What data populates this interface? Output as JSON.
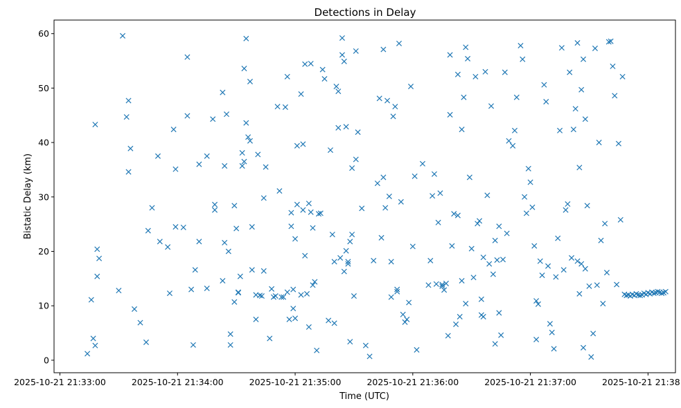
{
  "chart_data": {
    "type": "scatter",
    "title": "Detections in Delay",
    "xlabel": "Time (UTC)",
    "ylabel": "Bistatic Delay (km)",
    "marker": "x",
    "color": "#1f77b4",
    "grid": false,
    "xlim": [
      "2025-10-21 21:32:57",
      "2025-10-21 21:38:14"
    ],
    "ylim": [
      -2.3,
      62.5
    ],
    "xticks": [
      "2025-10-21 21:33:00",
      "2025-10-21 21:34:00",
      "2025-10-21 21:35:00",
      "2025-10-21 21:36:00",
      "2025-10-21 21:37:00",
      "2025-10-21 21:38:00"
    ],
    "yticks": [
      0,
      10,
      20,
      30,
      40,
      50,
      60
    ],
    "series": [
      {
        "x": [
          "21:33:14",
          "21:33:16",
          "21:33:17",
          "21:33:18",
          "21:33:18",
          "21:33:19",
          "21:33:19",
          "21:33:20",
          "21:33:30",
          "21:33:32",
          "21:33:34",
          "21:33:35",
          "21:33:35",
          "21:33:36",
          "21:33:38",
          "21:33:41",
          "21:33:44",
          "21:33:45",
          "21:33:47",
          "21:33:50",
          "21:33:51",
          "21:33:55",
          "21:33:56",
          "21:33:58",
          "21:33:59",
          "21:33:59",
          "21:34:03",
          "21:34:05",
          "21:34:05",
          "21:34:07",
          "21:34:08",
          "21:34:09",
          "21:34:11",
          "21:34:11",
          "21:34:15",
          "21:34:15",
          "21:34:18",
          "21:34:19",
          "21:34:19",
          "21:34:23",
          "21:34:23",
          "21:34:24",
          "21:34:24",
          "21:34:25",
          "21:34:26",
          "21:34:27",
          "21:34:27",
          "21:34:29",
          "21:34:29",
          "21:34:30",
          "21:34:31",
          "21:34:31",
          "21:34:32",
          "21:34:33",
          "21:34:33",
          "21:34:34",
          "21:34:34",
          "21:34:35",
          "21:34:35",
          "21:34:36",
          "21:34:37",
          "21:34:37",
          "21:34:38",
          "21:34:38",
          "21:34:40",
          "21:34:40",
          "21:34:41",
          "21:34:42",
          "21:34:43",
          "21:34:44",
          "21:34:44",
          "21:34:45",
          "21:34:47",
          "21:34:48",
          "21:34:49",
          "21:34:50",
          "21:34:51",
          "21:34:52",
          "21:34:53",
          "21:34:54",
          "21:34:55",
          "21:34:56",
          "21:34:56",
          "21:34:57",
          "21:34:58",
          "21:34:58",
          "21:34:59",
          "21:34:59",
          "21:35:00",
          "21:35:00",
          "21:35:01",
          "21:35:01",
          "21:35:03",
          "21:35:03",
          "21:35:04",
          "21:35:04",
          "21:35:05",
          "21:35:05",
          "21:35:06",
          "21:35:07",
          "21:35:07",
          "21:35:08",
          "21:35:08",
          "21:35:09",
          "21:35:09",
          "21:35:10",
          "21:35:11",
          "21:35:12",
          "21:35:13",
          "21:35:14",
          "21:35:15",
          "21:35:17",
          "21:35:18",
          "21:35:19",
          "21:35:20",
          "21:35:20",
          "21:35:21",
          "21:35:22",
          "21:35:22",
          "21:35:23",
          "21:35:24",
          "21:35:24",
          "21:35:25",
          "21:35:25",
          "21:35:26",
          "21:35:26",
          "21:35:27",
          "21:35:27",
          "21:35:28",
          "21:35:28",
          "21:35:29",
          "21:35:29",
          "21:35:30",
          "21:35:31",
          "21:35:31",
          "21:35:32",
          "21:35:34",
          "21:35:36",
          "21:35:38",
          "21:35:40",
          "21:35:42",
          "21:35:43",
          "21:35:44",
          "21:35:45",
          "21:35:45",
          "21:35:46",
          "21:35:47",
          "21:35:48",
          "21:35:49",
          "21:35:49",
          "21:35:50",
          "21:35:51",
          "21:35:52",
          "21:35:52",
          "21:35:53",
          "21:35:54",
          "21:35:55",
          "21:35:56",
          "21:35:57",
          "21:35:58",
          "21:35:59",
          "21:36:00",
          "21:36:01",
          "21:36:02",
          "21:36:05",
          "21:36:08",
          "21:36:09",
          "21:36:10",
          "21:36:11",
          "21:36:12",
          "21:36:13",
          "21:36:14",
          "21:36:15",
          "21:36:15",
          "21:36:16",
          "21:36:17",
          "21:36:18",
          "21:36:19",
          "21:36:19",
          "21:36:20",
          "21:36:21",
          "21:36:22",
          "21:36:23",
          "21:36:23",
          "21:36:24",
          "21:36:25",
          "21:36:25",
          "21:36:26",
          "21:36:27",
          "21:36:27",
          "21:36:28",
          "21:36:29",
          "21:36:30",
          "21:36:31",
          "21:36:32",
          "21:36:33",
          "21:36:34",
          "21:36:35",
          "21:36:35",
          "21:36:36",
          "21:36:36",
          "21:36:37",
          "21:36:38",
          "21:36:39",
          "21:36:40",
          "21:36:41",
          "21:36:42",
          "21:36:42",
          "21:36:43",
          "21:36:44",
          "21:36:44",
          "21:36:45",
          "21:36:46",
          "21:36:47",
          "21:36:48",
          "21:36:49",
          "21:36:51",
          "21:36:52",
          "21:36:53",
          "21:36:55",
          "21:36:56",
          "21:36:57",
          "21:36:58",
          "21:36:59",
          "21:37:00",
          "21:37:01",
          "21:37:02",
          "21:37:03",
          "21:37:03",
          "21:37:04",
          "21:37:05",
          "21:37:06",
          "21:37:07",
          "21:37:08",
          "21:37:09",
          "21:37:10",
          "21:37:11",
          "21:37:12",
          "21:37:13",
          "21:37:14",
          "21:37:15",
          "21:37:16",
          "21:37:17",
          "21:37:18",
          "21:37:19",
          "21:37:20",
          "21:37:21",
          "21:37:22",
          "21:37:23",
          "21:37:24",
          "21:37:24",
          "21:37:25",
          "21:37:25",
          "21:37:26",
          "21:37:26",
          "21:37:27",
          "21:37:27",
          "21:37:28",
          "21:37:28",
          "21:37:29",
          "21:37:30",
          "21:37:31",
          "21:37:32",
          "21:37:33",
          "21:37:34",
          "21:37:35",
          "21:37:36",
          "21:37:37",
          "21:37:38",
          "21:37:39",
          "21:37:40",
          "21:37:41",
          "21:37:42",
          "21:37:43",
          "21:37:44",
          "21:37:45",
          "21:37:46",
          "21:37:47",
          "21:37:48",
          "21:37:49",
          "21:37:50",
          "21:37:51",
          "21:37:52",
          "21:37:53",
          "21:37:54",
          "21:37:55",
          "21:37:56",
          "21:37:57",
          "21:37:58",
          "21:37:59",
          "21:38:00",
          "21:38:01",
          "21:38:02",
          "21:38:03",
          "21:38:04",
          "21:38:05",
          "21:38:06",
          "21:38:07",
          "21:38:08",
          "21:38:09"
        ],
        "y": [
          1.2,
          11.1,
          4.0,
          43.3,
          2.7,
          15.4,
          20.4,
          18.7,
          12.8,
          59.6,
          44.7,
          34.6,
          47.7,
          38.9,
          9.4,
          6.9,
          3.3,
          23.8,
          28.0,
          37.5,
          21.8,
          20.8,
          12.3,
          42.4,
          24.5,
          35.1,
          24.4,
          55.7,
          44.9,
          13.0,
          2.8,
          16.6,
          36.0,
          21.8,
          37.5,
          13.2,
          44.3,
          27.6,
          28.6,
          49.2,
          14.6,
          35.7,
          21.6,
          45.2,
          20.0,
          4.8,
          2.8,
          28.4,
          10.7,
          24.2,
          12.5,
          12.4,
          15.4,
          38.1,
          35.7,
          36.5,
          53.6,
          59.1,
          43.6,
          41.0,
          51.2,
          40.3,
          24.5,
          16.6,
          7.5,
          12.0,
          37.8,
          11.9,
          11.8,
          29.8,
          16.4,
          35.5,
          4.0,
          13.1,
          11.6,
          11.8,
          46.6,
          31.1,
          11.6,
          11.6,
          46.5,
          12.5,
          52.1,
          7.5,
          27.1,
          24.6,
          13.0,
          9.5,
          7.7,
          22.3,
          28.6,
          39.4,
          48.9,
          12.0,
          39.7,
          27.6,
          19.2,
          54.4,
          12.2,
          28.8,
          6.1,
          54.5,
          27.2,
          24.3,
          13.8,
          14.4,
          1.8,
          26.9,
          27.0,
          53.4,
          51.7,
          7.3,
          38.6,
          23.1,
          6.8,
          18.1,
          50.3,
          42.7,
          49.4,
          18.8,
          59.2,
          56.1,
          16.3,
          54.9,
          20.1,
          42.9,
          18.1,
          17.7,
          21.8,
          3.4,
          23.1,
          35.3,
          11.8,
          36.9,
          56.8,
          41.9,
          27.9,
          2.7,
          0.7,
          18.3,
          32.5,
          48.1,
          22.5,
          57.1,
          33.6,
          28.0,
          47.7,
          30.1,
          18.1,
          11.6,
          44.8,
          46.6,
          12.6,
          13.0,
          58.2,
          29.1,
          8.4,
          7.0,
          7.5,
          10.6,
          50.3,
          20.9,
          33.8,
          1.9,
          36.1,
          13.8,
          18.3,
          30.2,
          34.2,
          14.0,
          25.3,
          30.7,
          13.6,
          13.9,
          12.9,
          14.1,
          4.5,
          56.1,
          45.1,
          21.0,
          26.9,
          6.6,
          52.5,
          26.6,
          8.0,
          14.6,
          42.4,
          48.3,
          10.4,
          57.5,
          55.4,
          33.6,
          20.5,
          15.2,
          52.1,
          25.1,
          25.6,
          11.2,
          8.3,
          8.0,
          18.9,
          53.0,
          30.3,
          17.7,
          46.7,
          15.8,
          3.0,
          22.0,
          18.4,
          24.6,
          8.7,
          4.6,
          18.5,
          52.9,
          23.3,
          40.3,
          39.4,
          42.2,
          48.3,
          57.8,
          55.3,
          30.0,
          27.0,
          35.2,
          32.7,
          28.1,
          21.0,
          3.8,
          10.9,
          10.3,
          18.2,
          15.6,
          50.6,
          47.5,
          17.3,
          6.7,
          5.1,
          2.1,
          15.3,
          22.4,
          42.2,
          57.4,
          16.6,
          27.6,
          28.7,
          52.9,
          18.8,
          42.4,
          46.2,
          58.3,
          18.2,
          35.4,
          12.2,
          49.7,
          17.7,
          55.3,
          2.3,
          16.8,
          44.3,
          28.4,
          13.6,
          0.6,
          4.9,
          57.3,
          13.8,
          40.0,
          22.0,
          10.4,
          25.1,
          16.1,
          58.5,
          58.6,
          54.0,
          48.6,
          13.9,
          39.8,
          25.8,
          52.1,
          12.1,
          11.9,
          12.0,
          11.8,
          12.1,
          11.9,
          12.2,
          12.0,
          11.9,
          12.0,
          12.3,
          12.1,
          12.4,
          12.2,
          12.5,
          12.3,
          12.4,
          12.6,
          12.5,
          12.3,
          12.4,
          12.6
        ]
      }
    ]
  }
}
